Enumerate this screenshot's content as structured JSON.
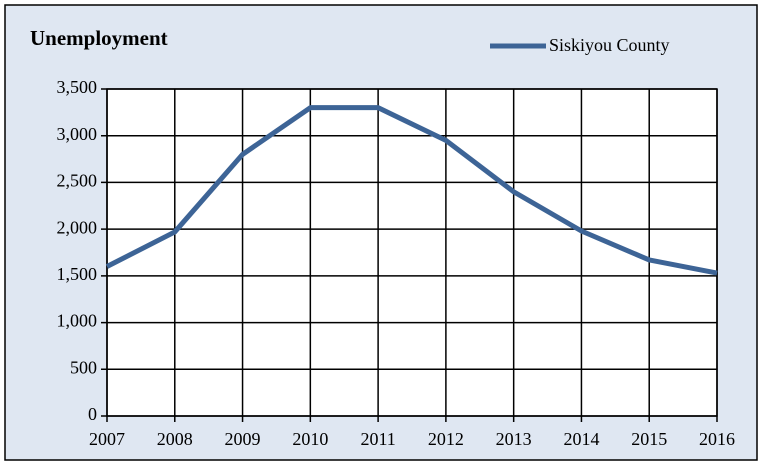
{
  "chart_data": {
    "type": "line",
    "title": "Unemployment",
    "x": [
      2007,
      2008,
      2009,
      2010,
      2011,
      2012,
      2013,
      2014,
      2015,
      2016
    ],
    "series": [
      {
        "name": "Siskiyou County",
        "color": "#3d6496",
        "values": [
          1600,
          1970,
          2800,
          3300,
          3300,
          2950,
          2400,
          1980,
          1670,
          1530
        ]
      }
    ],
    "xlim": [
      2007,
      2016
    ],
    "xticks": [
      2007,
      2008,
      2009,
      2010,
      2011,
      2012,
      2013,
      2014,
      2015,
      2016
    ],
    "ylim": [
      0,
      3500
    ],
    "yticks": [
      0,
      500,
      {
        "value": 1000,
        "label": "1,000"
      },
      {
        "value": 1500,
        "label": "1,500"
      },
      {
        "value": 2000,
        "label": "2,000"
      },
      {
        "value": 2500,
        "label": "2,500"
      },
      {
        "value": 3000,
        "label": "3,000"
      },
      {
        "value": 3500,
        "label": "3,500"
      }
    ],
    "grid": true,
    "legend": "top-right"
  }
}
